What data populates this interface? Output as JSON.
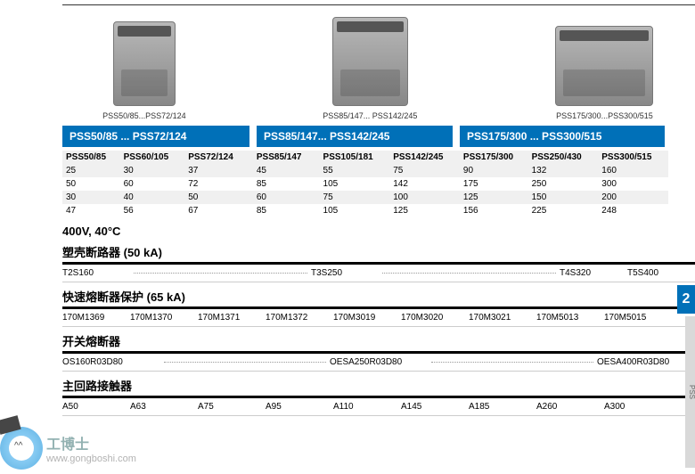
{
  "colors": {
    "brand_blue": "#0070b8",
    "shade": "#f0f0f0"
  },
  "products": [
    {
      "caption": "PSS50/85...PSS72/124"
    },
    {
      "caption": "PSS85/147... PSS142/245"
    },
    {
      "caption": "PSS175/300...PSS300/515"
    }
  ],
  "bands": [
    "PSS50/85 ... PSS72/124",
    "PSS85/147... PSS142/245",
    "PSS175/300 ... PSS300/515"
  ],
  "spec": {
    "headers": [
      "PSS50/85",
      "PSS60/105",
      "PSS72/124",
      "PSS85/147",
      "PSS105/181",
      "PSS142/245",
      "PSS175/300",
      "PSS250/430",
      "PSS300/515"
    ],
    "rows": [
      [
        "25",
        "30",
        "37",
        "45",
        "55",
        "75",
        "90",
        "132",
        "160"
      ],
      [
        "50",
        "60",
        "72",
        "85",
        "105",
        "142",
        "175",
        "250",
        "300"
      ],
      [
        "30",
        "40",
        "50",
        "60",
        "75",
        "100",
        "125",
        "150",
        "200"
      ],
      [
        "47",
        "56",
        "67",
        "85",
        "105",
        "125",
        "156",
        "225",
        "248"
      ]
    ]
  },
  "condition": "400V, 40°C",
  "sections": {
    "mccb": {
      "title": "塑壳断路器 (50 kA)",
      "row": {
        "a": "T2S160",
        "b": "T3S250",
        "c": "T4S320",
        "d": "T5S400"
      }
    },
    "fuse_fast": {
      "title": "快速熔断器保护 (65 kA)",
      "row": [
        "170M1369",
        "170M1370",
        "170M1371",
        "170M1372",
        "170M3019",
        "170M3020",
        "170M3021",
        "170M5013",
        "170M5015"
      ]
    },
    "fuse_switch": {
      "title": "开关熔断器",
      "row": {
        "a": "OS160R03D80",
        "b": "OESA250R03D80",
        "c": "OESA400R03D80"
      }
    },
    "contactor": {
      "title": "主回路接触器",
      "row": [
        "A50",
        "A63",
        "A75",
        "A95",
        "A110",
        "A145",
        "A185",
        "A260",
        "A300"
      ]
    }
  },
  "side": {
    "tab": "2",
    "strip": "PSS"
  },
  "watermark": {
    "cn": "工博士",
    "url": "www.gongboshi.com"
  }
}
